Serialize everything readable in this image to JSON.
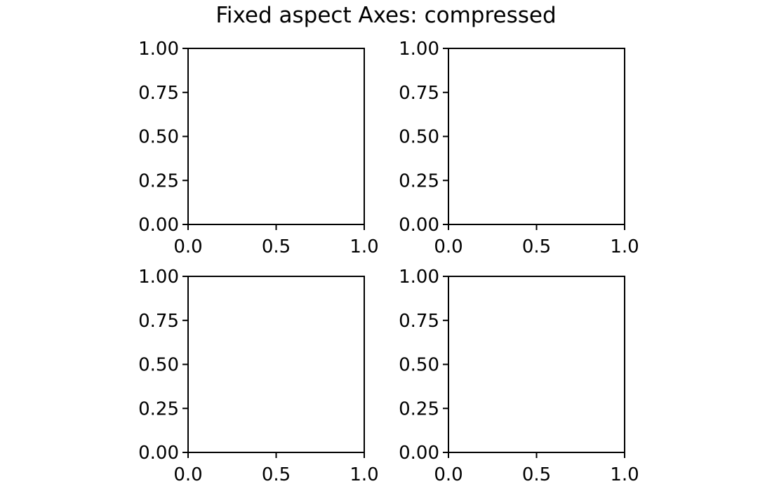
{
  "figure": {
    "suptitle": "Fixed aspect Axes: compressed"
  },
  "chart_data": [
    {
      "type": "line",
      "subplot": "top-left",
      "title": "",
      "xlabel": "",
      "ylabel": "",
      "xlim": [
        0.0,
        1.0
      ],
      "ylim": [
        0.0,
        1.0
      ],
      "xticks": [
        0.0,
        0.5,
        1.0
      ],
      "xtick_labels": [
        "0.0",
        "0.5",
        "1.0"
      ],
      "yticks": [
        0.0,
        0.25,
        0.5,
        0.75,
        1.0
      ],
      "ytick_labels": [
        "0.00",
        "0.25",
        "0.50",
        "0.75",
        "1.00"
      ],
      "series": [],
      "grid": false
    },
    {
      "type": "line",
      "subplot": "top-right",
      "title": "",
      "xlabel": "",
      "ylabel": "",
      "xlim": [
        0.0,
        1.0
      ],
      "ylim": [
        0.0,
        1.0
      ],
      "xticks": [
        0.0,
        0.5,
        1.0
      ],
      "xtick_labels": [
        "0.0",
        "0.5",
        "1.0"
      ],
      "yticks": [
        0.0,
        0.25,
        0.5,
        0.75,
        1.0
      ],
      "ytick_labels": [
        "0.00",
        "0.25",
        "0.50",
        "0.75",
        "1.00"
      ],
      "series": [],
      "grid": false
    },
    {
      "type": "line",
      "subplot": "bottom-left",
      "title": "",
      "xlabel": "",
      "ylabel": "",
      "xlim": [
        0.0,
        1.0
      ],
      "ylim": [
        0.0,
        1.0
      ],
      "xticks": [
        0.0,
        0.5,
        1.0
      ],
      "xtick_labels": [
        "0.0",
        "0.5",
        "1.0"
      ],
      "yticks": [
        0.0,
        0.25,
        0.5,
        0.75,
        1.0
      ],
      "ytick_labels": [
        "0.00",
        "0.25",
        "0.50",
        "0.75",
        "1.00"
      ],
      "series": [],
      "grid": false
    },
    {
      "type": "line",
      "subplot": "bottom-right",
      "title": "",
      "xlabel": "",
      "ylabel": "",
      "xlim": [
        0.0,
        1.0
      ],
      "ylim": [
        0.0,
        1.0
      ],
      "xticks": [
        0.0,
        0.5,
        1.0
      ],
      "xtick_labels": [
        "0.0",
        "0.5",
        "1.0"
      ],
      "yticks": [
        0.0,
        0.25,
        0.5,
        0.75,
        1.0
      ],
      "ytick_labels": [
        "0.00",
        "0.25",
        "0.50",
        "0.75",
        "1.00"
      ],
      "series": [],
      "grid": false
    }
  ]
}
